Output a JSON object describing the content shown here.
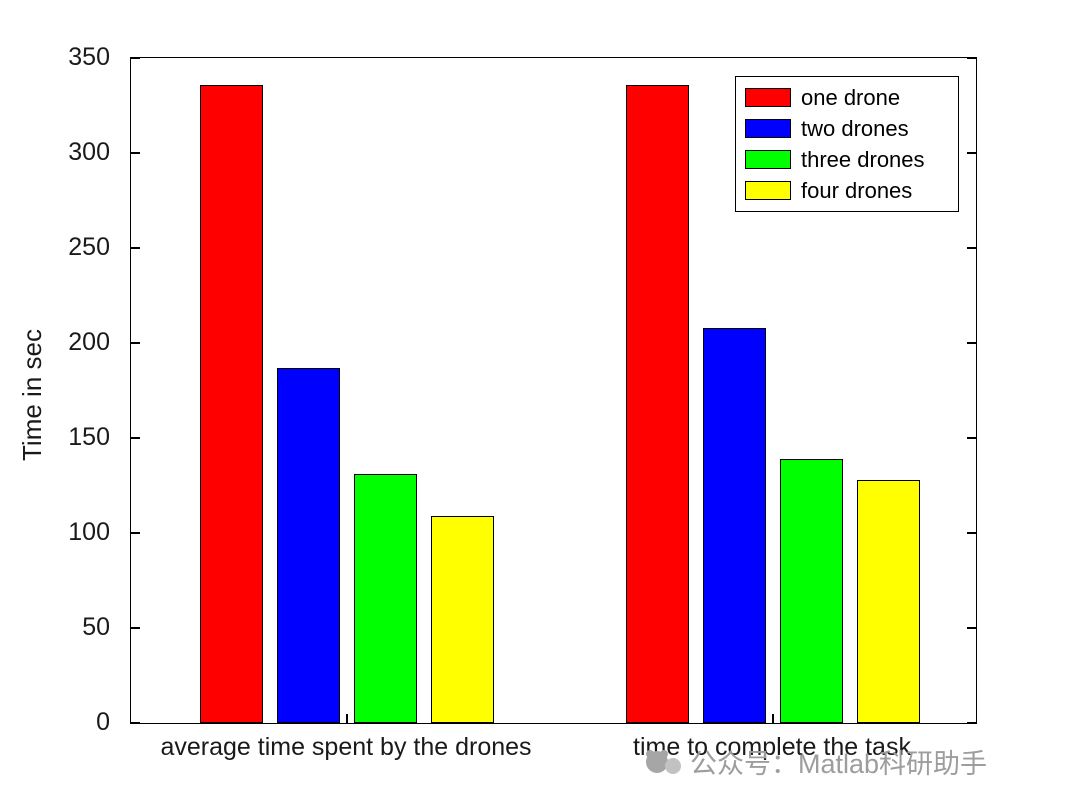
{
  "watermark": {
    "text": "公众号：Matlab科研助手"
  },
  "chart_data": {
    "type": "bar",
    "title": "",
    "xlabel": "",
    "ylabel": "Time in sec",
    "categories": [
      "average time spent by the drones",
      "time to complete the task"
    ],
    "series": [
      {
        "name": "one drone",
        "color": "#ff0000",
        "values": [
          336,
          336
        ]
      },
      {
        "name": "two drones",
        "color": "#0000ff",
        "values": [
          187,
          208
        ]
      },
      {
        "name": "three drones",
        "color": "#00ff00",
        "values": [
          131,
          139
        ]
      },
      {
        "name": "four drones",
        "color": "#ffff00",
        "values": [
          109,
          128
        ]
      }
    ],
    "ylim": [
      0,
      350
    ],
    "yticks": [
      0,
      50,
      100,
      150,
      200,
      250,
      300,
      350
    ],
    "legend_position": "top-right",
    "grid": false,
    "bar_edge_color": "#000000"
  }
}
